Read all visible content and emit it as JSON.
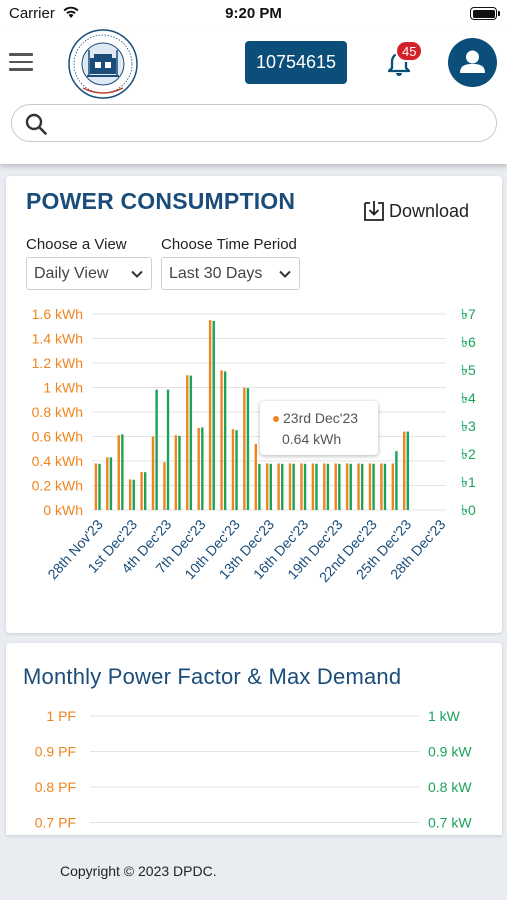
{
  "status_bar": {
    "carrier": "Carrier",
    "time": "9:20 PM"
  },
  "header": {
    "account_number": "10754615",
    "notification_count": "45",
    "search": {
      "placeholder": "",
      "value": ""
    },
    "icons": [
      "menu-icon",
      "company-logo",
      "bell-icon",
      "user-icon",
      "search-icon"
    ]
  },
  "colors": {
    "primary": "#0b4e7a",
    "orange": "#f0841e",
    "green": "#1aa35a",
    "badge": "#d42028"
  },
  "power_card": {
    "title": "POWER CONSUMPTION",
    "download_label": "Download",
    "view_label": "Choose a View",
    "view_value": "Daily View",
    "period_label": "Choose Time Period",
    "period_value": "Last 30 Days",
    "tooltip": {
      "date": "23rd Dec'23",
      "value": "0.64 kWh"
    }
  },
  "chart_data": [
    {
      "type": "bar",
      "title": "POWER CONSUMPTION",
      "x_tick_labels": [
        "28th Nov'23",
        "1st Dec'23",
        "4th Dec'23",
        "7th Dec'23",
        "10th Dec'23",
        "13th Dec'23",
        "16th Dec'23",
        "19th Dec'23",
        "22nd Dec'23",
        "25th Dec'23",
        "28th Dec'23"
      ],
      "y_left_tick_labels": [
        "0 kWh",
        "0.2 kWh",
        "0.4 kWh",
        "0.6 kWh",
        "0.8 kWh",
        "1 kWh",
        "1.2 kWh",
        "1.4 kWh",
        "1.6 kWh"
      ],
      "y_right_tick_labels": [
        "৳0",
        "৳1",
        "৳2",
        "৳3",
        "৳4",
        "৳5",
        "৳6",
        "৳7"
      ],
      "ylim_left": [
        0,
        1.6
      ],
      "ylim_right": [
        0,
        7
      ],
      "grid": true,
      "series": [
        {
          "axis": "left",
          "color": "#f0841e",
          "values": [
            0.38,
            0.43,
            0.61,
            0.25,
            0.31,
            0.6,
            0.39,
            0.61,
            1.1,
            0.67,
            1.55,
            1.14,
            0.66,
            1.0,
            0.54,
            0.38,
            0.38,
            0.38,
            0.38,
            0.38,
            0.38,
            0.38,
            0.38,
            0.38,
            0.38,
            0.38,
            0.38,
            0.64
          ]
        },
        {
          "axis": "right",
          "color": "#1aa35a",
          "values": [
            1.65,
            1.88,
            2.7,
            1.08,
            1.35,
            4.3,
            4.3,
            2.65,
            4.8,
            2.95,
            6.75,
            4.95,
            2.85,
            4.35,
            1.65,
            1.65,
            1.65,
            1.65,
            1.65,
            1.65,
            1.65,
            1.65,
            1.65,
            1.65,
            1.65,
            1.65,
            2.1,
            2.8
          ]
        }
      ]
    },
    {
      "type": "line",
      "title": "Monthly Power Factor & Max Demand",
      "y_left_tick_labels": [
        "1 PF",
        "0.9 PF",
        "0.8 PF",
        "0.7 PF"
      ],
      "y_right_tick_labels": [
        "1 kW",
        "0.9 kW",
        "0.8 kW",
        "0.7 kW"
      ],
      "grid": true,
      "series": []
    }
  ],
  "pf_card": {
    "title": "Monthly Power Factor & Max Demand"
  },
  "footer": {
    "copyright": "Copyright © 2023 DPDC."
  }
}
